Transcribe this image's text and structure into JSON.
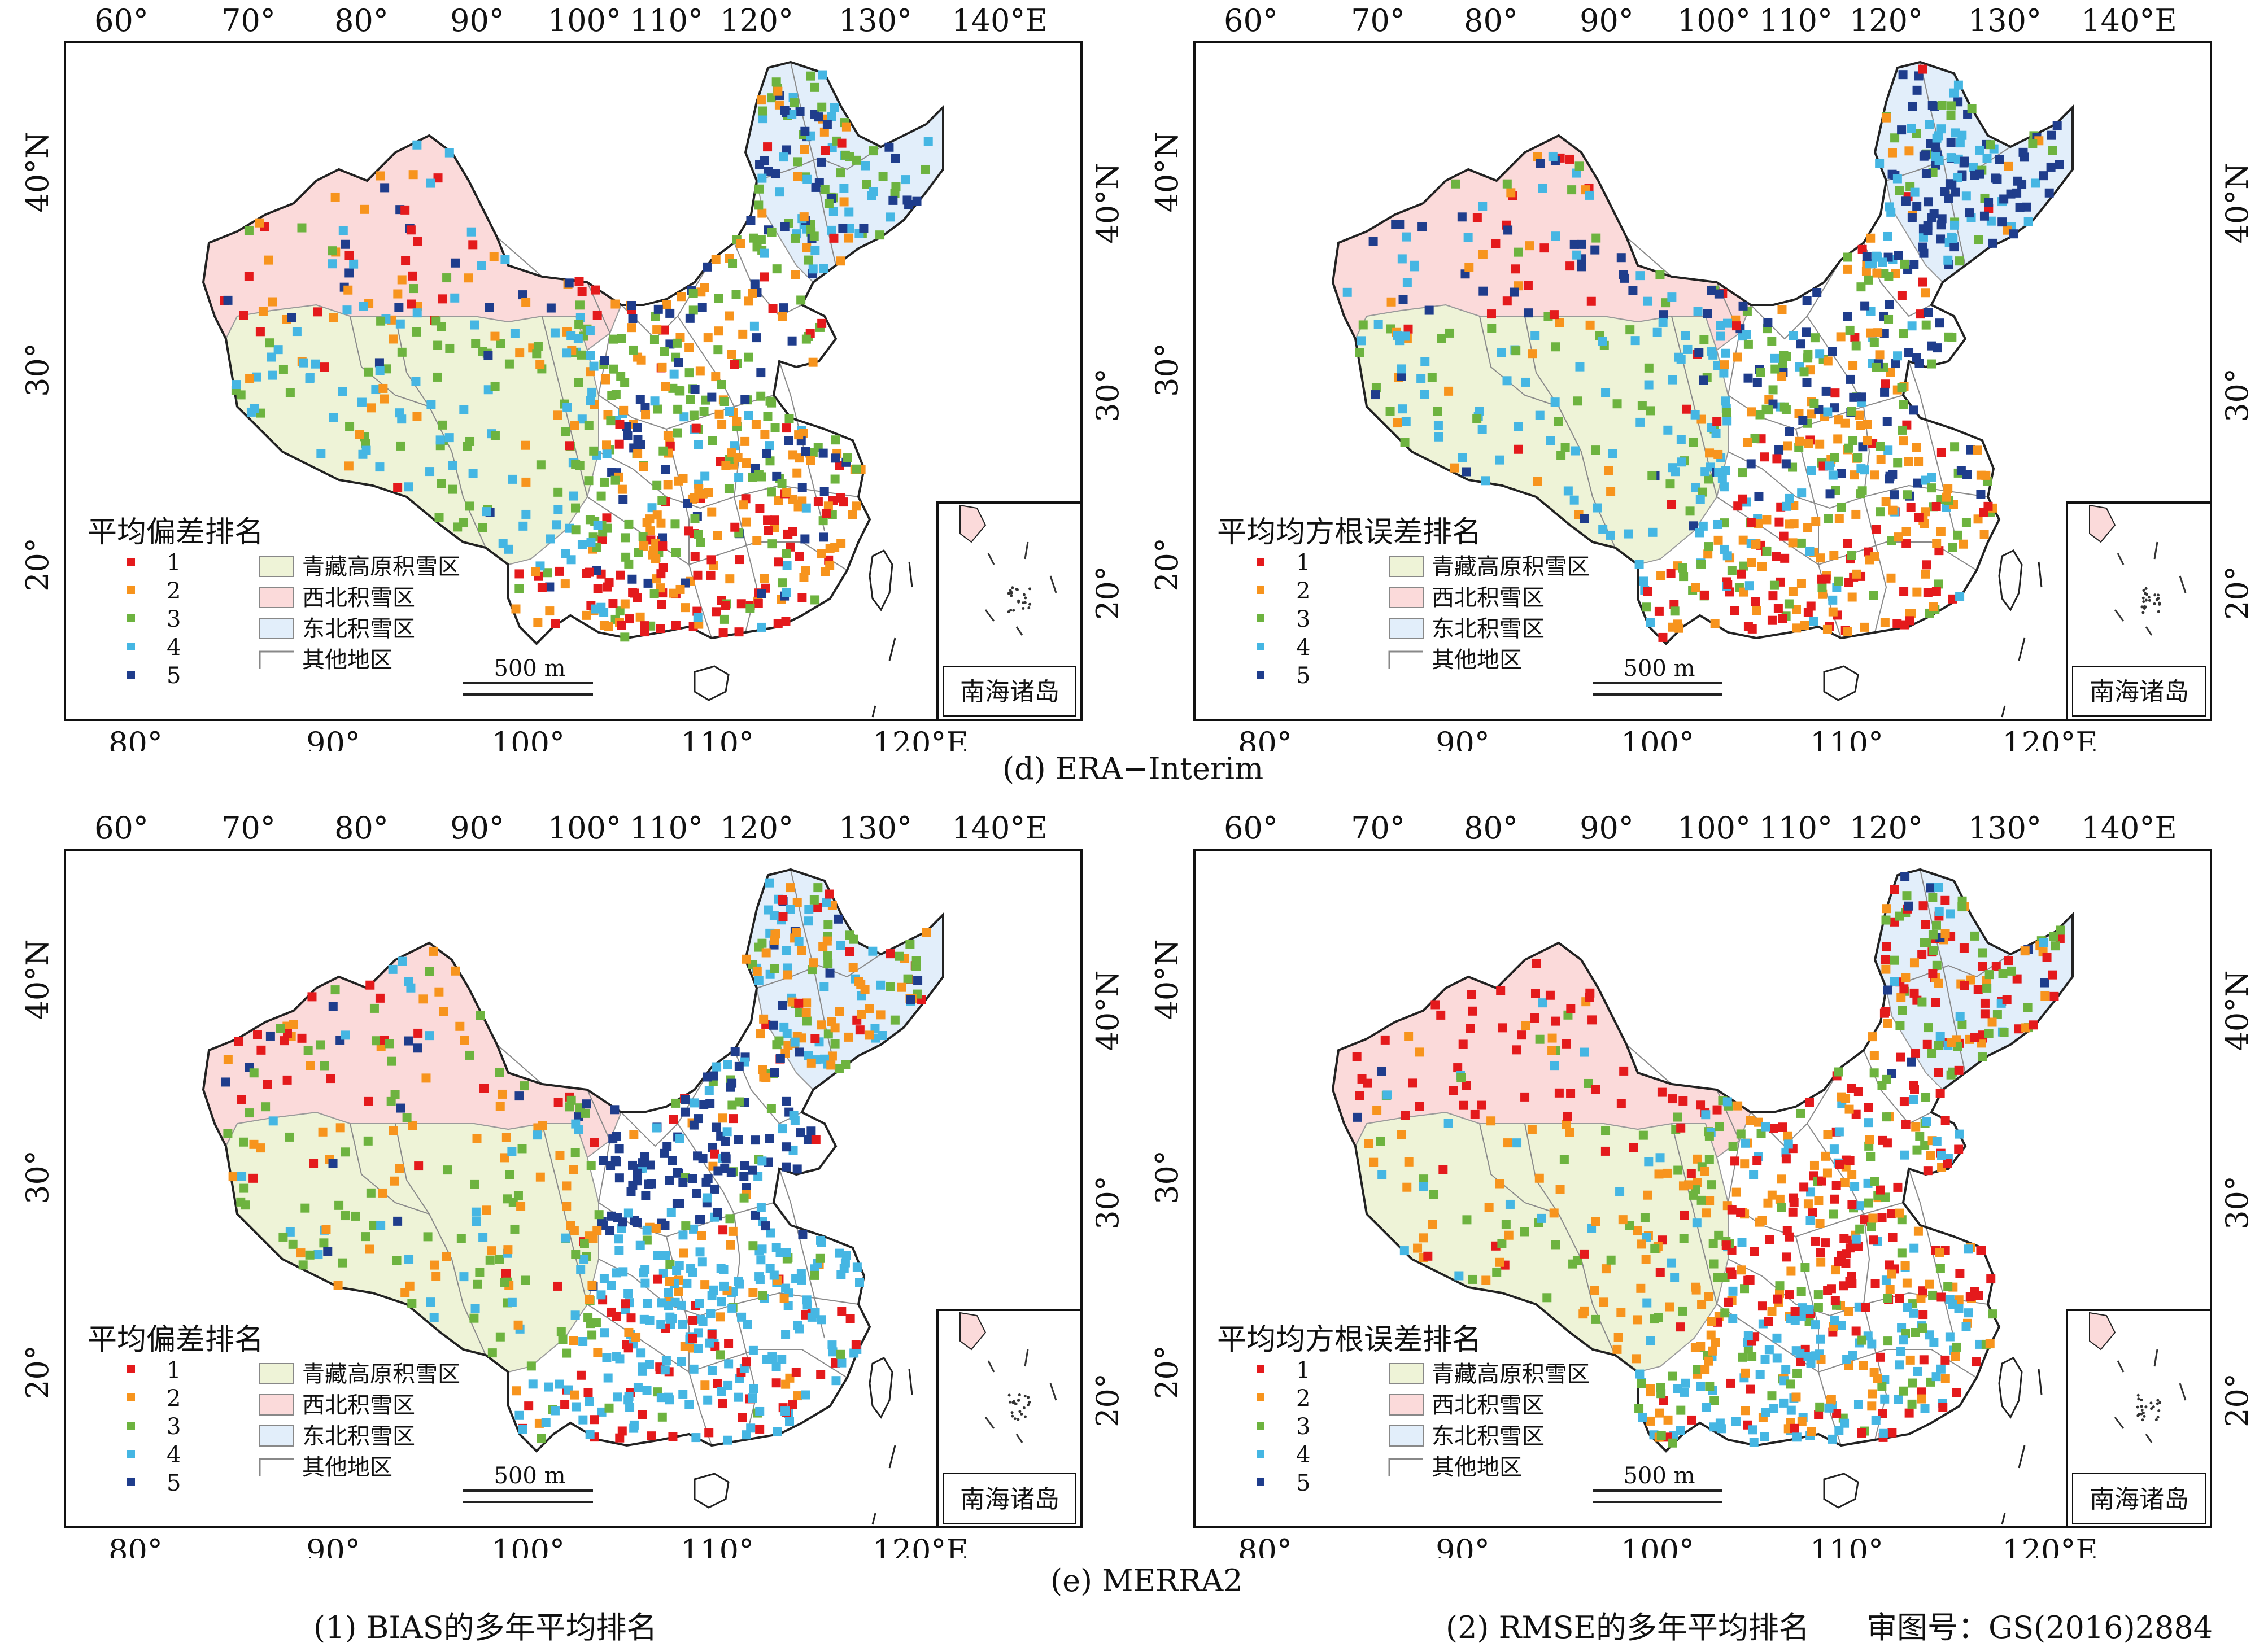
{
  "top_axis_labels": [
    "60°",
    "70°",
    "80°",
    "90°",
    "100°",
    "110°",
    "120°",
    "130°",
    "140°E"
  ],
  "bottom_axis_labels": [
    "80°",
    "90°",
    "100°",
    "110°",
    "120°E"
  ],
  "left_axis_labels": [
    "40°N",
    "30°",
    "20°"
  ],
  "right_axis_labels": [
    "40°N",
    "30°",
    "20°"
  ],
  "legend_bias_title": "平均偏差排名",
  "legend_rmse_title": "平均均方根误差排名",
  "rank_labels": [
    "1",
    "2",
    "3",
    "4",
    "5"
  ],
  "region_labels": [
    "青藏高原积雪区",
    "西北积雪区",
    "东北积雪区",
    "其他地区"
  ],
  "scale_label": "500 m",
  "inset_label": "南海诸岛",
  "caption_d": "(d) ERA−Interim",
  "caption_e": "(e) MERRA2",
  "caption_col1": "(1) BIAS的多年平均排名",
  "caption_col2": "(2) RMSE的多年平均排名",
  "review_number": "审图号：GS(2016)2884",
  "colors": {
    "rank1": "#e41a1c",
    "rank2": "#f7941d",
    "rank3": "#6db33f",
    "rank4": "#45b6e3",
    "rank5": "#1f3d8c",
    "tibet": "#eef3d7",
    "northwest": "#fbdada",
    "northeast": "#e2eefa"
  }
}
